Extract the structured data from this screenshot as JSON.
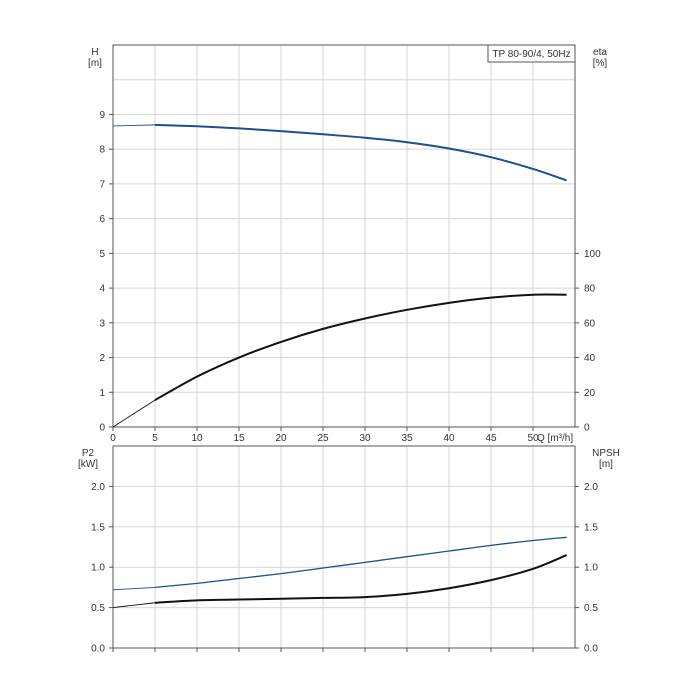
{
  "chart_data": [
    {
      "type": "line",
      "title": "TP 80-90/4, 50Hz",
      "xlabel": "Q [m³/h]",
      "xlabel_unit": "Q [m³/h]",
      "xlim": [
        0,
        55
      ],
      "x_ticks": [
        0,
        5,
        10,
        15,
        20,
        25,
        30,
        35,
        40,
        45,
        50
      ],
      "ylabel": "H",
      "ylabel_unit": "[m]",
      "ylim": [
        0,
        11
      ],
      "y_ticks": [
        0,
        1,
        2,
        3,
        4,
        5,
        6,
        7,
        8,
        9
      ],
      "y2label": "eta",
      "y2label_unit": "[%]",
      "y2lim": [
        0,
        220
      ],
      "y2_ticks": [
        0,
        20,
        40,
        60,
        80,
        100
      ],
      "grid": true,
      "series": [
        {
          "axis": "left",
          "color": "#1f4e8c",
          "points": [
            [
              0,
              8.67
            ],
            [
              5,
              8.7
            ],
            [
              10,
              8.66
            ],
            [
              15,
              8.6
            ],
            [
              20,
              8.52
            ],
            [
              25,
              8.43
            ],
            [
              30,
              8.33
            ],
            [
              35,
              8.2
            ],
            [
              40,
              8.02
            ],
            [
              45,
              7.77
            ],
            [
              50,
              7.43
            ],
            [
              54,
              7.1
            ]
          ]
        },
        {
          "axis": "right",
          "color": "#111111",
          "points": [
            [
              0,
              0
            ],
            [
              5,
              15.5
            ],
            [
              10,
              29
            ],
            [
              15,
              40
            ],
            [
              20,
              49
            ],
            [
              25,
              56.5
            ],
            [
              30,
              62.5
            ],
            [
              35,
              67.5
            ],
            [
              40,
              71.5
            ],
            [
              45,
              74.5
            ],
            [
              50,
              76.2
            ],
            [
              54,
              76.2
            ]
          ]
        }
      ]
    },
    {
      "type": "line",
      "xlim": [
        0,
        55
      ],
      "ylabel": "P2",
      "ylabel_unit": "[kW]",
      "ylim": [
        0,
        2.5
      ],
      "y_ticks": [
        "0.0",
        "0.5",
        "1.0",
        "1.5",
        "2.0"
      ],
      "y2label": "NPSH",
      "y2label_unit": "[m]",
      "y2lim": [
        0,
        2.5
      ],
      "y2_ticks": [
        "0.0",
        "0.5",
        "1.0",
        "1.5",
        "2.0"
      ],
      "grid": true,
      "series": [
        {
          "axis": "left",
          "color": "#1f4e8c",
          "points": [
            [
              0,
              0.72
            ],
            [
              5,
              0.75
            ],
            [
              10,
              0.8
            ],
            [
              15,
              0.86
            ],
            [
              20,
              0.92
            ],
            [
              25,
              0.99
            ],
            [
              30,
              1.06
            ],
            [
              35,
              1.13
            ],
            [
              40,
              1.2
            ],
            [
              45,
              1.27
            ],
            [
              50,
              1.33
            ],
            [
              54,
              1.37
            ]
          ]
        },
        {
          "axis": "right",
          "color": "#111111",
          "points": [
            [
              0,
              0.5
            ],
            [
              5,
              0.56
            ],
            [
              10,
              0.59
            ],
            [
              15,
              0.6
            ],
            [
              20,
              0.61
            ],
            [
              25,
              0.62
            ],
            [
              30,
              0.63
            ],
            [
              35,
              0.67
            ],
            [
              40,
              0.74
            ],
            [
              45,
              0.84
            ],
            [
              50,
              0.98
            ],
            [
              54,
              1.15
            ]
          ]
        }
      ]
    }
  ]
}
